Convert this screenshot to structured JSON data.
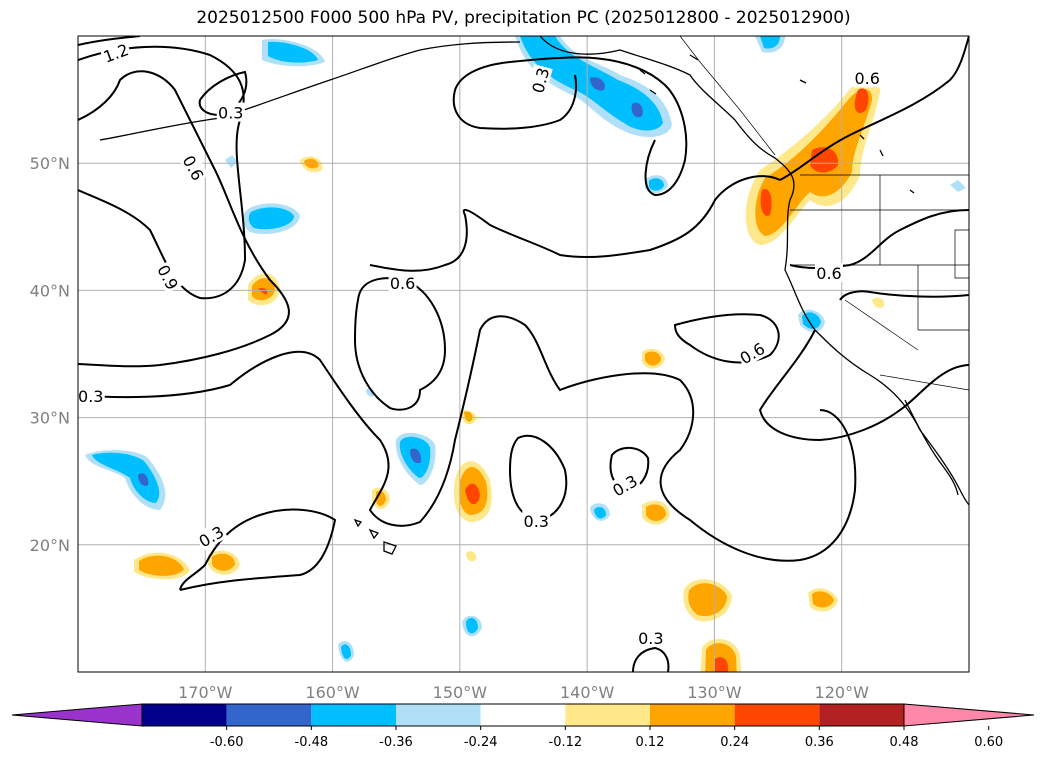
{
  "title": "2025012500 F000 500 hPa PV, precipitation PC (2025012800 - 2025012900)",
  "map": {
    "lon_range": [
      -180,
      -110
    ],
    "lat_range": [
      10,
      60
    ],
    "lon_ticks": [
      {
        "value": -170,
        "label": "170°W"
      },
      {
        "value": -160,
        "label": "160°W"
      },
      {
        "value": -150,
        "label": "150°W"
      },
      {
        "value": -140,
        "label": "140°W"
      },
      {
        "value": -130,
        "label": "130°W"
      },
      {
        "value": -120,
        "label": "120°W"
      }
    ],
    "lat_ticks": [
      {
        "value": 50,
        "label": "50°N"
      },
      {
        "value": 40,
        "label": "40°N"
      },
      {
        "value": 30,
        "label": "30°N"
      },
      {
        "value": 20,
        "label": "20°N"
      }
    ],
    "grid": true
  },
  "pv_contour_labels": [
    {
      "text": "1.2",
      "lon": -177,
      "lat": 58.6,
      "rotate": -20
    },
    {
      "text": "0.3",
      "lon": -168,
      "lat": 53.9,
      "rotate": 0
    },
    {
      "text": "0.6",
      "lon": -171,
      "lat": 49.6,
      "rotate": 62
    },
    {
      "text": "0.9",
      "lon": -173,
      "lat": 41.0,
      "rotate": 62
    },
    {
      "text": "0.6",
      "lon": -154.5,
      "lat": 40.5,
      "rotate": 0
    },
    {
      "text": "0.3",
      "lon": -179,
      "lat": 31.6,
      "rotate": 0
    },
    {
      "text": "0.3",
      "lon": -143.6,
      "lat": 56.5,
      "rotate": -75
    },
    {
      "text": "0.6",
      "lon": -118,
      "lat": 56.6,
      "rotate": 0
    },
    {
      "text": "0.6",
      "lon": -121,
      "lat": 41.3,
      "rotate": 0
    },
    {
      "text": "0.6",
      "lon": -127,
      "lat": 35.0,
      "rotate": -30
    },
    {
      "text": "0.3",
      "lon": -137,
      "lat": 24.6,
      "rotate": -30
    },
    {
      "text": "0.3",
      "lon": -144,
      "lat": 21.8,
      "rotate": 0
    },
    {
      "text": "0.3",
      "lon": -169.5,
      "lat": 20.6,
      "rotate": -30
    },
    {
      "text": "0.3",
      "lon": -135,
      "lat": 12.6,
      "rotate": 0
    }
  ],
  "colorbar": {
    "ticks": [
      "-0.60",
      "-0.48",
      "-0.36",
      "-0.24",
      "-0.12",
      "0.12",
      "0.24",
      "0.36",
      "0.48",
      "0.60"
    ],
    "colors": [
      "#9933cc",
      "#00008b",
      "#3366cc",
      "#00bfff",
      "#b0e0f8",
      "#ffffff",
      "#ffe88a",
      "#ffa500",
      "#ff4500",
      "#b22222",
      "#ff88aa"
    ]
  },
  "colors": {
    "pos_light": "#ffe88a",
    "pos_mid": "#ffa500",
    "pos_strong": "#ff4500",
    "neg_light": "#b0e0f8",
    "neg_mid": "#00bfff",
    "neg_strong": "#3366cc",
    "grid": "#b0b0b0",
    "tick_label": "#808080"
  }
}
